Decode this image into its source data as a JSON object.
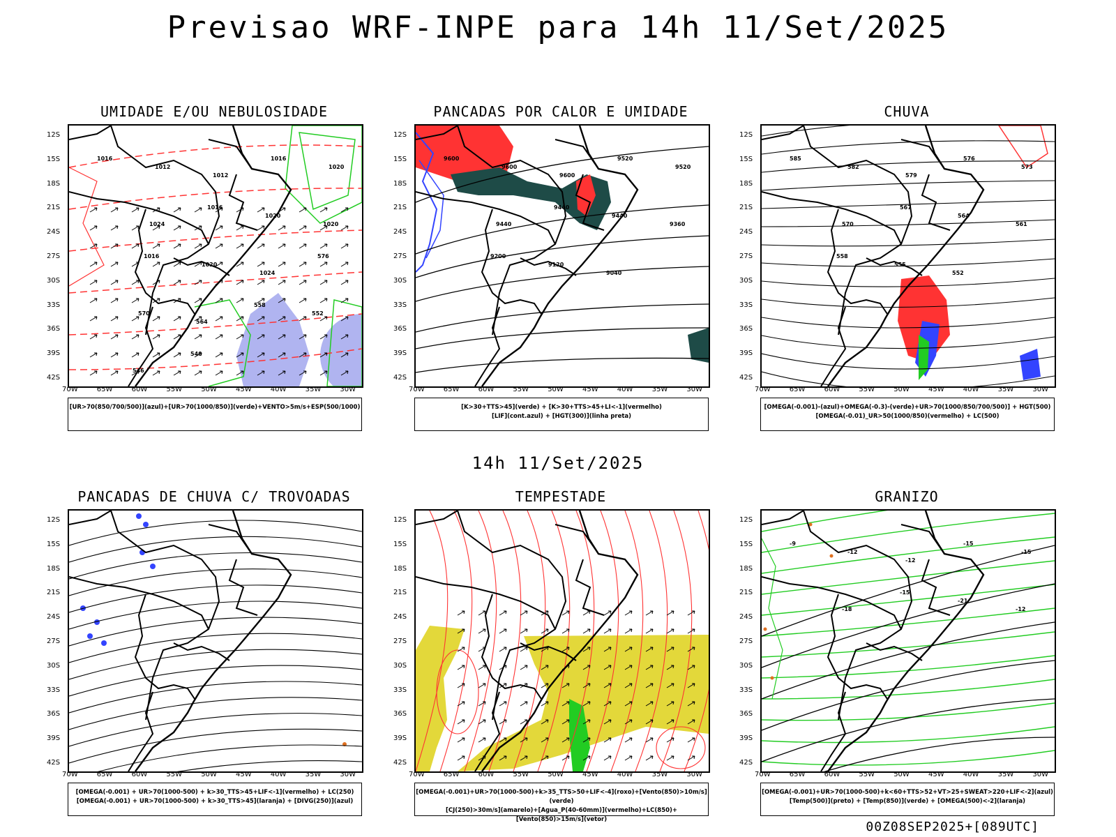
{
  "title": "Previsao WRF-INPE  para 14h 11/Set/2025",
  "mid_title": "14h 11/Set/2025",
  "footer": "00Z08SEP2025+[089UTC]",
  "lat_labels": [
    "12S",
    "15S",
    "18S",
    "21S",
    "24S",
    "27S",
    "30S",
    "33S",
    "36S",
    "39S",
    "42S"
  ],
  "lon_labels": [
    "70W",
    "65W",
    "60W",
    "55W",
    "50W",
    "45W",
    "40W",
    "35W",
    "30W"
  ],
  "panels": [
    {
      "title": "UMIDADE E/OU NEBULOSIDADE",
      "legend": [
        "[UR>70(850/700/500)](azul)+[UR>70(1000/850)](verde)+VENTO>5m/s+ESP(500/1000)"
      ],
      "contour_labels": [
        "1016",
        "1012",
        "1012",
        "1016",
        "1020",
        "1024",
        "1016",
        "1020",
        "1020",
        "1016",
        "1020",
        "1024",
        "576",
        "570",
        "564",
        "558",
        "552",
        "546",
        "540"
      ]
    },
    {
      "title": "PANCADAS POR CALOR E UMIDADE",
      "legend": [
        "[K>30+TTS>45](verde) + [K>30+TTS>45+LI<-1](vermelho)",
        "[LIF](cont.azul) + [HGT(300)](linha preta)"
      ],
      "contour_labels": [
        "9600",
        "9600",
        "9600",
        "9520",
        "9520",
        "9440",
        "9440",
        "9440",
        "9360",
        "9200",
        "9120",
        "9040"
      ]
    },
    {
      "title": "CHUVA",
      "legend": [
        "[OMEGA(-0.001)-(azul)+OMEGA(-0.3)-(verde)+UR>70(1000/850/700/500)] + HGT(500)",
        "[OMEGA(-0.01)_UR>50(1000/850)(vermelho) + LC(500)"
      ],
      "contour_labels": [
        "585",
        "582",
        "579",
        "576",
        "573",
        "570",
        "567",
        "564",
        "561",
        "558",
        "555",
        "552"
      ]
    },
    {
      "title": "PANCADAS DE CHUVA C/ TROVOADAS",
      "legend": [
        "[OMEGA(-0.001) + UR>70(1000-500) + k>30_TTS>45+LIF<-1](vermelho) + LC(250)",
        "[OMEGA(-0.001) + UR>70(1000-500) + k>30_TTS>45](laranja) + [DIVG(250)](azul)"
      ],
      "contour_labels": []
    },
    {
      "title": "TEMPESTADE",
      "legend": [
        "[OMEGA(-0.001)+UR>70(1000-500)+k>35_TTS>50+LIF<-4](roxo)+[Vento(850)>10m/s](verde)",
        "[CJ(250)>30m/s](amarelo)+[Agua_P(40-60mm)](vermelho)+LC(850)+[Vento(850)>15m/s](vetor)"
      ],
      "contour_labels": []
    },
    {
      "title": "GRANIZO",
      "legend": [
        "[OMEGA(-0.001)+UR>70(1000-500)+k<60+TTS>52+VT>25+SWEAT>220+LIF<-2](azul)",
        "[Temp(500)](preto) + [Temp(850)](verde) + [OMEGA(500)<-2](laranja)"
      ],
      "contour_labels": [
        "-9",
        "-12",
        "-12",
        "-15",
        "-15",
        "-18",
        "-15",
        "-21",
        "-12"
      ]
    }
  ],
  "colors": {
    "blue": "#3344ff",
    "green": "#22cc22",
    "red": "#ff3333",
    "dark_teal": "#1e4b47",
    "yellow": "#e3d83a",
    "orange": "#e07020",
    "light_blue": "#b0b4f0"
  }
}
